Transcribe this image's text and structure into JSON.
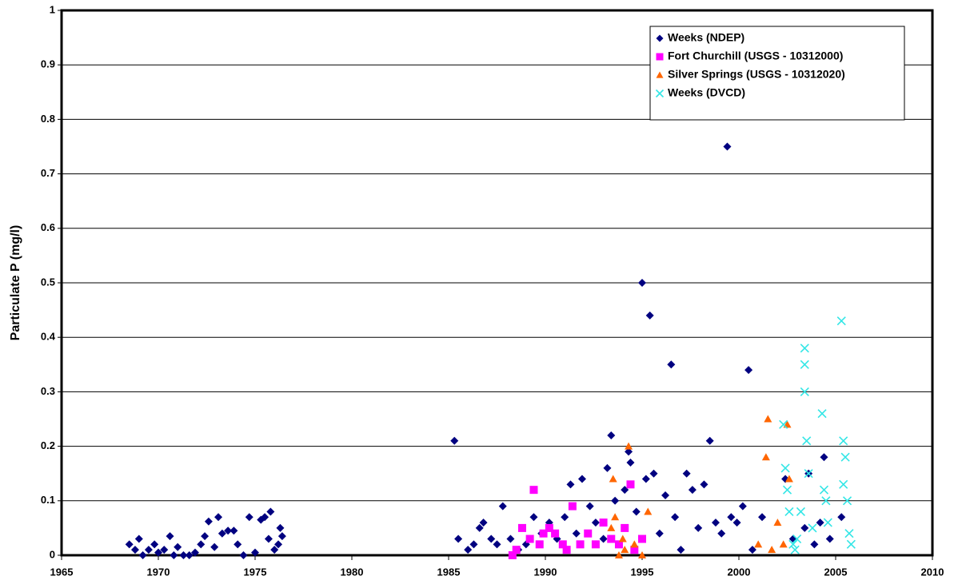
{
  "chart_data": {
    "type": "scatter",
    "ylabel": "Particulate P (mg/l)",
    "xlim": [
      1965,
      2010
    ],
    "xticks": [
      1965,
      1970,
      1975,
      1980,
      1985,
      1990,
      1995,
      2000,
      2005,
      2010
    ],
    "ylim": [
      0,
      1
    ],
    "yticks": [
      0,
      0.1,
      0.2,
      0.3,
      0.4,
      0.5,
      0.6,
      0.7,
      0.8,
      0.9,
      1
    ],
    "grid": true,
    "legend": "top-right",
    "series": [
      {
        "name": "Weeks (NDEP)",
        "color": "#000080",
        "marker": "diamond",
        "x": [
          1968.5,
          1968.8,
          1969,
          1969.2,
          1969.5,
          1969.8,
          1970,
          1970.3,
          1970.6,
          1970.8,
          1971,
          1971.3,
          1971.6,
          1971.9,
          1972.2,
          1972.4,
          1972.6,
          1972.9,
          1973.1,
          1973.3,
          1973.6,
          1973.9,
          1974.1,
          1974.4,
          1974.7,
          1975,
          1975.3,
          1975.5,
          1975.7,
          1975.8,
          1976,
          1976.2,
          1976.3,
          1976.4,
          1985.3,
          1985.5,
          1986,
          1986.3,
          1986.6,
          1986.8,
          1987.2,
          1987.5,
          1987.8,
          1988.2,
          1988.6,
          1989,
          1989.4,
          1989.8,
          1990.2,
          1990.6,
          1991,
          1991.3,
          1991.6,
          1991.9,
          1992.3,
          1992.6,
          1993,
          1993.2,
          1993.4,
          1993.6,
          1994.1,
          1994.3,
          1994.4,
          1994.7,
          1995,
          1995.2,
          1995.4,
          1995.6,
          1995.9,
          1996.2,
          1996.5,
          1996.7,
          1997,
          1997.3,
          1997.6,
          1997.9,
          1998.2,
          1998.5,
          1998.8,
          1999.1,
          1999.4,
          1999.6,
          1999.9,
          2000.2,
          2000.5,
          2000.7,
          2001.2,
          2002.4,
          2002.8,
          2003.4,
          2003.6,
          2003.9,
          2004.2,
          2004.4,
          2004.7,
          2005.3
        ],
        "values": [
          0.02,
          0.01,
          0.03,
          0,
          0.01,
          0.02,
          0.005,
          0.01,
          0.035,
          0,
          0.015,
          0,
          0,
          0.005,
          0.02,
          0.035,
          0.062,
          0.015,
          0.07,
          0.04,
          0.045,
          0.045,
          0.02,
          0,
          0.07,
          0.005,
          0.065,
          0.07,
          0.03,
          0.08,
          0.01,
          0.02,
          0.05,
          0.035,
          0.21,
          0.03,
          0.01,
          0.02,
          0.05,
          0.06,
          0.03,
          0.02,
          0.09,
          0.03,
          0.01,
          0.02,
          0.07,
          0.04,
          0.06,
          0.03,
          0.07,
          0.13,
          0.04,
          0.14,
          0.09,
          0.06,
          0.03,
          0.16,
          0.22,
          0.1,
          0.12,
          0.19,
          0.17,
          0.08,
          0.5,
          0.14,
          0.44,
          0.15,
          0.04,
          0.11,
          0.35,
          0.07,
          0.01,
          0.15,
          0.12,
          0.05,
          0.13,
          0.21,
          0.06,
          0.04,
          0.75,
          0.07,
          0.06,
          0.09,
          0.34,
          0.01,
          0.07,
          0.14,
          0.03,
          0.05,
          0.15,
          0.02,
          0.06,
          0.18,
          0.03,
          0.07
        ]
      },
      {
        "name": "Fort Churchill (USGS - 10312000)",
        "color": "#ff00ff",
        "marker": "square",
        "x": [
          1988.3,
          1988.5,
          1988.8,
          1989.2,
          1989.4,
          1989.7,
          1989.9,
          1990.2,
          1990.5,
          1990.9,
          1991.1,
          1991.4,
          1991.8,
          1992.2,
          1992.6,
          1993,
          1993.4,
          1993.8,
          1994.1,
          1994.4,
          1994.6,
          1995
        ],
        "values": [
          0,
          0.01,
          0.05,
          0.03,
          0.12,
          0.02,
          0.04,
          0.05,
          0.04,
          0.02,
          0.01,
          0.09,
          0.02,
          0.04,
          0.02,
          0.06,
          0.03,
          0.02,
          0.05,
          0.13,
          0.01,
          0.03
        ]
      },
      {
        "name": "Silver Springs (USGS - 10312020)",
        "color": "#ff6600",
        "marker": "triangle",
        "x": [
          1993.4,
          1993.5,
          1993.6,
          1993.8,
          1994,
          1994.1,
          1994.3,
          1994.6,
          1995,
          1995.3,
          2001,
          2001.4,
          2001.5,
          2001.7,
          2002,
          2002.3,
          2002.5,
          2002.6
        ],
        "values": [
          0.05,
          0.14,
          0.07,
          0,
          0.03,
          0.01,
          0.2,
          0.02,
          0,
          0.08,
          0.02,
          0.18,
          0.25,
          0.01,
          0.06,
          0.02,
          0.24,
          0.14
        ]
      },
      {
        "name": "Weeks (DVCD)",
        "color": "#33e6e6",
        "marker": "cross",
        "x": [
          2002.3,
          2002.4,
          2002.5,
          2002.6,
          2002.8,
          2003.2,
          2003.4,
          2003.4,
          2003.4,
          2003.5,
          2003.6,
          2003.8,
          2004.3,
          2004.4,
          2004.5,
          2004.6,
          2005.3,
          2005.4,
          2005.5,
          2005.4,
          2005.6,
          2005.7,
          2005.8,
          2003,
          2002.9
        ],
        "values": [
          0.24,
          0.16,
          0.12,
          0.08,
          0.02,
          0.08,
          0.38,
          0.35,
          0.3,
          0.21,
          0.15,
          0.05,
          0.26,
          0.12,
          0.1,
          0.06,
          0.43,
          0.21,
          0.18,
          0.13,
          0.1,
          0.04,
          0.02,
          0.03,
          0.01
        ]
      }
    ]
  }
}
